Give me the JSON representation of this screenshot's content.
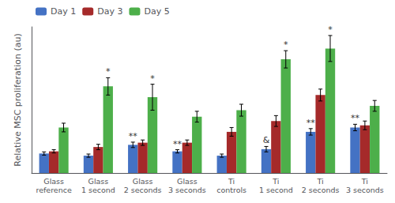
{
  "chart_data": {
    "type": "bar",
    "ylabel": "Relative MSC proliferation (au)",
    "categories": [
      "Glass\nreference",
      "Glass\n1 second",
      "Glass\n2 seconds",
      "Glass\n3 seconds",
      "Ti\ncontrols",
      "Ti\n1 second",
      "Ti\n2 seconds",
      "Ti\n3 seconds"
    ],
    "series": [
      {
        "name": "Day 1",
        "color": "#4472C4",
        "values": [
          0.18,
          0.16,
          0.26,
          0.2,
          0.16,
          0.22,
          0.38,
          0.42
        ],
        "err": [
          0.015,
          0.015,
          0.025,
          0.015,
          0.015,
          0.025,
          0.03,
          0.03
        ]
      },
      {
        "name": "Day 3",
        "color": "#A52A2A",
        "values": [
          0.2,
          0.24,
          0.28,
          0.28,
          0.38,
          0.48,
          0.72,
          0.44
        ],
        "err": [
          0.015,
          0.025,
          0.025,
          0.025,
          0.04,
          0.05,
          0.055,
          0.04
        ]
      },
      {
        "name": "Day 5",
        "color": "#4DAF4A",
        "values": [
          0.42,
          0.8,
          0.7,
          0.52,
          0.58,
          1.05,
          1.15,
          0.62
        ],
        "err": [
          0.04,
          0.08,
          0.12,
          0.05,
          0.055,
          0.08,
          0.12,
          0.05
        ]
      }
    ],
    "annotations": [
      {
        "category": "Glass\n1 second",
        "series": "Day 5",
        "text": "*"
      },
      {
        "category": "Glass\n2 seconds",
        "series": "Day 5",
        "text": "*"
      },
      {
        "category": "Glass\n2 seconds",
        "series": "Day 1",
        "text": "**"
      },
      {
        "category": "Glass\n3 seconds",
        "series": "Day 1",
        "text": "**"
      },
      {
        "category": "Ti\n1 second",
        "series": "Day 1",
        "text": "&"
      },
      {
        "category": "Ti\n1 second",
        "series": "Day 5",
        "text": "*"
      },
      {
        "category": "Ti\n2 seconds",
        "series": "Day 1",
        "text": "**"
      },
      {
        "category": "Ti\n2 seconds",
        "series": "Day 5",
        "text": "*"
      },
      {
        "category": "Ti\n3 seconds",
        "series": "Day 1",
        "text": "**"
      }
    ],
    "ylim": [
      0,
      1.35
    ],
    "yticks": [],
    "tick_labels": "x",
    "grid": false,
    "legend": "upper left"
  }
}
